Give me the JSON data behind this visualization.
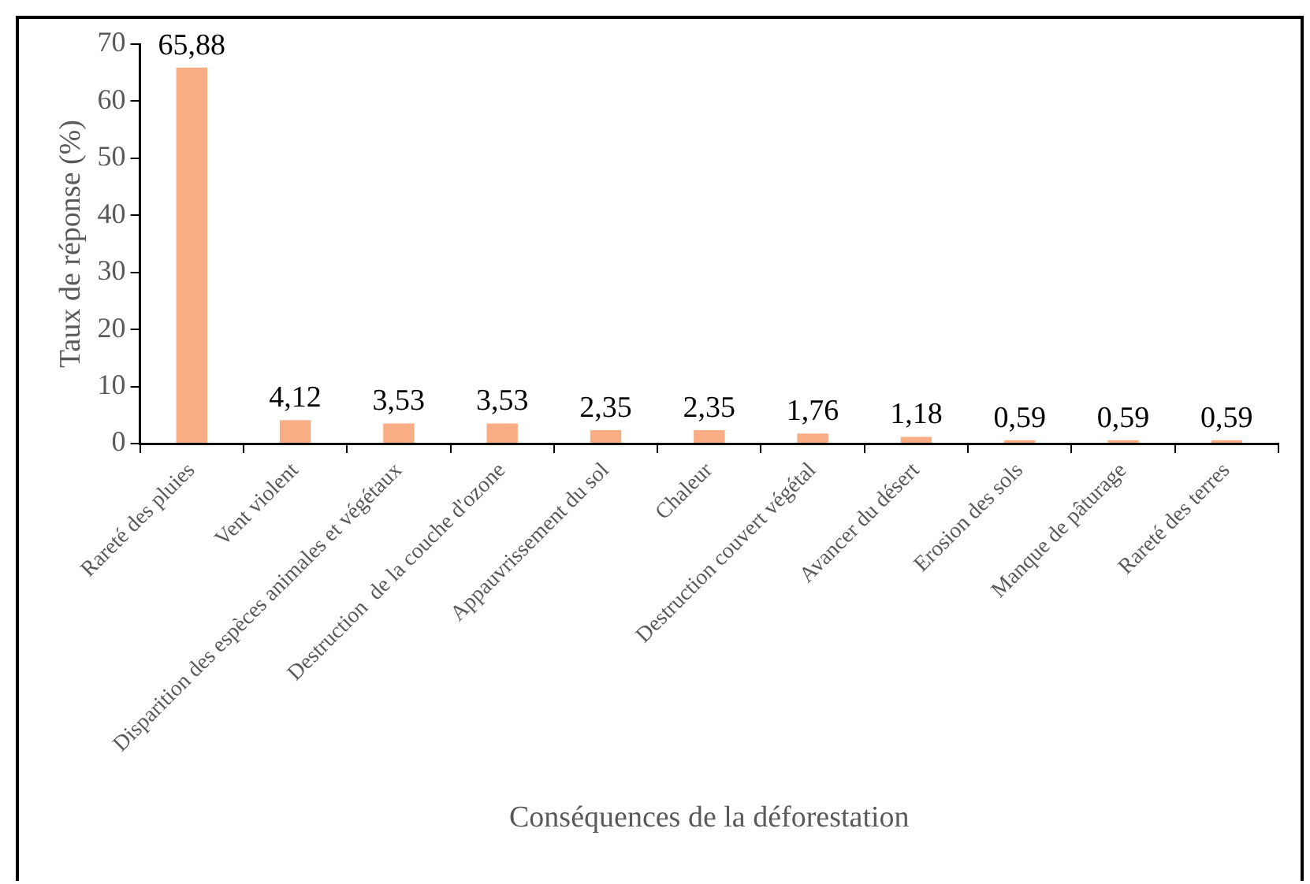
{
  "chart_data": {
    "type": "bar",
    "xlabel": "Conséquences de la déforestation",
    "ylabel": "Taux de réponse (%)",
    "categories": [
      "Rareté des pluies",
      "Vent violent",
      "Disparition des espèces animales et végétaux",
      "Destruction  de la couche d'ozone",
      "Appauvrissement du sol",
      "Chaleur",
      "Destruction couvert végétal",
      "Avancer du désert",
      "Erosion des sols",
      "Manque de pâturage",
      "Rareté des terres"
    ],
    "values": [
      65.88,
      4.12,
      3.53,
      3.53,
      2.35,
      2.35,
      1.76,
      1.18,
      0.59,
      0.59,
      0.59
    ],
    "value_labels": [
      "65,88",
      "4,12",
      "3,53",
      "3,53",
      "2,35",
      "2,35",
      "1,76",
      "1,18",
      "0,59",
      "0,59",
      "0,59"
    ],
    "color": "#f8ad84",
    "ylim": [
      0,
      70
    ],
    "yticks": [
      0,
      10,
      20,
      30,
      40,
      50,
      60,
      70
    ],
    "grid": false,
    "legend": false
  }
}
